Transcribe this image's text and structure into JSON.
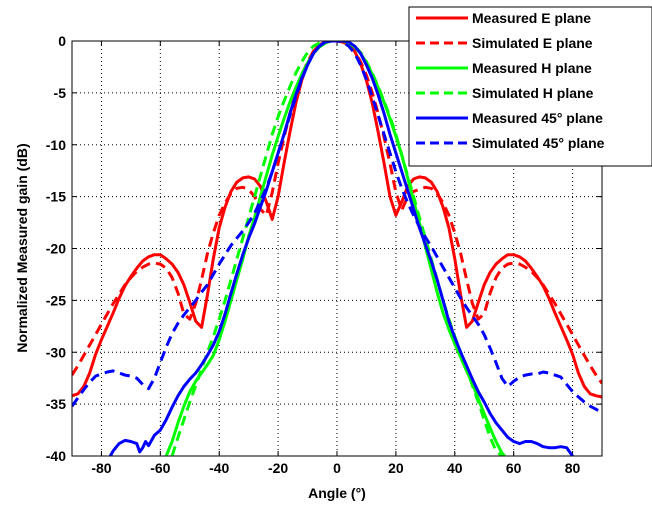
{
  "chart_data": {
    "type": "line",
    "title": "",
    "xlabel": "Angle (°)",
    "ylabel": "Normalized Measured gain (dB)",
    "xlim": [
      -90,
      90
    ],
    "ylim": [
      -40,
      0
    ],
    "xticks": [
      -80,
      -60,
      -40,
      -20,
      0,
      20,
      40,
      60,
      80
    ],
    "yticks": [
      0,
      -5,
      -10,
      -15,
      -20,
      -25,
      -30,
      -35,
      -40
    ],
    "grid": true,
    "legend_position": "top-right",
    "series": [
      {
        "name": "Measured E plane",
        "color": "#ff0000",
        "style": "solid",
        "x": [
          -90,
          -88,
          -86,
          -84,
          -82,
          -80,
          -78,
          -76,
          -74,
          -72,
          -70,
          -68,
          -66,
          -64,
          -62,
          -60,
          -58,
          -56,
          -54,
          -52,
          -50,
          -48,
          -46,
          -44,
          -42,
          -40,
          -38,
          -36,
          -34,
          -32,
          -30,
          -28,
          -26,
          -24,
          -22,
          -20,
          -18,
          -16,
          -14,
          -12,
          -10,
          -8,
          -6,
          -4,
          -2,
          0,
          2,
          4,
          6,
          8,
          10,
          12,
          14,
          16,
          18,
          20,
          22,
          24,
          26,
          28,
          30,
          32,
          34,
          36,
          38,
          40,
          42,
          44,
          46,
          48,
          50,
          52,
          54,
          56,
          58,
          60,
          62,
          64,
          66,
          68,
          70,
          72,
          74,
          76,
          78,
          80,
          82,
          84,
          86,
          88,
          90
        ],
        "y": [
          -34.2,
          -34,
          -33.3,
          -32,
          -30.2,
          -28.8,
          -27.5,
          -26.2,
          -24.8,
          -23.6,
          -22.7,
          -21.9,
          -21.2,
          -20.8,
          -20.6,
          -20.6,
          -21,
          -21.5,
          -22.3,
          -23.5,
          -25.2,
          -27,
          -27.6,
          -24.5,
          -21,
          -18,
          -16,
          -14.5,
          -13.6,
          -13.2,
          -13.1,
          -13.3,
          -14,
          -15.5,
          -17.2,
          -15,
          -11.8,
          -8.8,
          -6,
          -3.8,
          -2.2,
          -1,
          -0.4,
          -0.1,
          0,
          0,
          -0.1,
          -0.4,
          -1,
          -2.2,
          -3.8,
          -6,
          -8.8,
          -11.8,
          -15,
          -16.8,
          -15.5,
          -14,
          -13.3,
          -13.1,
          -13.2,
          -13.6,
          -14.5,
          -16,
          -18,
          -21,
          -24.5,
          -27.6,
          -27,
          -25.2,
          -23.5,
          -22.3,
          -21.5,
          -21,
          -20.6,
          -20.6,
          -20.8,
          -21.2,
          -21.9,
          -22.7,
          -23.6,
          -24.8,
          -26.2,
          -27.5,
          -28.8,
          -30.2,
          -32,
          -33.3,
          -34,
          -34.2,
          -34.3
        ]
      },
      {
        "name": "Simulated E plane",
        "color": "#ff0000",
        "style": "dashed",
        "x": [
          -90,
          -88,
          -86,
          -84,
          -82,
          -80,
          -78,
          -76,
          -74,
          -72,
          -70,
          -68,
          -66,
          -64,
          -62,
          -60,
          -58,
          -56,
          -54,
          -52,
          -50,
          -48,
          -46,
          -44,
          -42,
          -40,
          -38,
          -36,
          -34,
          -32,
          -30,
          -28,
          -26,
          -24,
          -22,
          -20,
          -18,
          -16,
          -14,
          -12,
          -10,
          -8,
          -6,
          -4,
          -2,
          0,
          2,
          4,
          6,
          8,
          10,
          12,
          14,
          16,
          18,
          20,
          22,
          24,
          26,
          28,
          30,
          32,
          34,
          36,
          38,
          40,
          42,
          44,
          46,
          48,
          50,
          52,
          54,
          56,
          58,
          60,
          62,
          64,
          66,
          68,
          70,
          72,
          74,
          76,
          78,
          80,
          82,
          84,
          86,
          88,
          90
        ],
        "y": [
          -32.2,
          -31.3,
          -30.3,
          -29.3,
          -28.3,
          -27.3,
          -26.3,
          -25.3,
          -24.4,
          -23.5,
          -22.8,
          -22.2,
          -21.8,
          -21.5,
          -21.4,
          -21.5,
          -21.9,
          -22.8,
          -24.3,
          -26.3,
          -26.8,
          -25.3,
          -23,
          -20.5,
          -18.5,
          -16.8,
          -15.6,
          -14.7,
          -14.2,
          -14.1,
          -14.3,
          -15,
          -16.2,
          -16.8,
          -14.6,
          -11.8,
          -9.3,
          -7,
          -5,
          -3.3,
          -2,
          -1,
          -0.4,
          -0.1,
          0,
          0,
          -0.1,
          -0.4,
          -1,
          -2,
          -3.3,
          -5,
          -7,
          -9.3,
          -11.8,
          -14.6,
          -16.3,
          -15,
          -14.5,
          -14.3,
          -14.1,
          -14.2,
          -14.7,
          -15.6,
          -16.8,
          -18.5,
          -20.5,
          -23,
          -25.3,
          -26.8,
          -26.3,
          -24.3,
          -22.8,
          -21.9,
          -21.5,
          -21.4,
          -21.5,
          -21.8,
          -22.2,
          -22.8,
          -23.5,
          -24.4,
          -25.3,
          -26.3,
          -27.3,
          -28.3,
          -29.3,
          -30.3,
          -31.3,
          -32.2,
          -33
        ]
      },
      {
        "name": "Measured H plane",
        "color": "#00ff00",
        "style": "solid",
        "x": [
          -58,
          -56,
          -54,
          -52,
          -50,
          -48,
          -46,
          -44,
          -42,
          -40,
          -38,
          -36,
          -34,
          -32,
          -30,
          -28,
          -26,
          -24,
          -22,
          -20,
          -18,
          -16,
          -14,
          -12,
          -10,
          -8,
          -6,
          -4,
          -2,
          0,
          2,
          4,
          6,
          8,
          10,
          12,
          14,
          16,
          18,
          20,
          22,
          24,
          26,
          28,
          30,
          32,
          34,
          36,
          38,
          40,
          42,
          44,
          46,
          48,
          50,
          52,
          54,
          56,
          57
        ],
        "y": [
          -40,
          -38.6,
          -36.8,
          -35.2,
          -33.8,
          -32.8,
          -32,
          -31.2,
          -30.3,
          -28.8,
          -27,
          -25,
          -23,
          -21,
          -18.8,
          -17,
          -15,
          -13,
          -11,
          -9.2,
          -7.5,
          -5.9,
          -4.5,
          -3.2,
          -2.1,
          -1.2,
          -0.6,
          -0.2,
          0,
          0,
          0,
          -0.2,
          -0.6,
          -1.2,
          -2.1,
          -3.2,
          -4.5,
          -5.9,
          -7.5,
          -9.2,
          -11,
          -13.2,
          -15.4,
          -17.5,
          -19.8,
          -22,
          -24.2,
          -26.2,
          -27.8,
          -29.2,
          -30.5,
          -31.8,
          -33,
          -34.5,
          -35.9,
          -37.3,
          -38.6,
          -39.7,
          -40
        ]
      },
      {
        "name": "Simulated H plane",
        "color": "#00ff00",
        "style": "dashed",
        "x": [
          -56,
          -54,
          -52,
          -50,
          -48,
          -46,
          -44,
          -42,
          -40,
          -38,
          -36,
          -34,
          -32,
          -30,
          -28,
          -26,
          -24,
          -22,
          -20,
          -18,
          -16,
          -14,
          -12,
          -10,
          -8,
          -6,
          -4,
          -2,
          0,
          2,
          4,
          6,
          8,
          10,
          12,
          14,
          16,
          18,
          20,
          22,
          24,
          26,
          28,
          30,
          32,
          34,
          36,
          38,
          40,
          42,
          44,
          46,
          48,
          50,
          52,
          54,
          56
        ],
        "y": [
          -40,
          -38.2,
          -36.5,
          -34.8,
          -33.2,
          -31.6,
          -30,
          -28.5,
          -26.8,
          -25,
          -23,
          -21,
          -19,
          -17,
          -15,
          -13,
          -11,
          -9,
          -7.3,
          -5.8,
          -4.4,
          -3.1,
          -2,
          -1.1,
          -0.5,
          -0.2,
          0,
          0,
          0,
          0,
          -0.2,
          -0.5,
          -1.1,
          -2,
          -3.1,
          -4.4,
          -5.8,
          -7.3,
          -9,
          -11,
          -13,
          -15,
          -17,
          -19,
          -21,
          -23,
          -25,
          -26.8,
          -28.5,
          -30,
          -31.6,
          -33.2,
          -34.8,
          -36.5,
          -38.2,
          -39.5,
          -40
        ]
      },
      {
        "name": "Measured 45° plane",
        "color": "#0000ff",
        "style": "solid",
        "x": [
          -77,
          -76,
          -74,
          -72,
          -70,
          -68,
          -67,
          -66,
          -65,
          -64,
          -62,
          -60,
          -58,
          -56,
          -54,
          -52,
          -50,
          -48,
          -46,
          -44,
          -42,
          -40,
          -38,
          -36,
          -34,
          -32,
          -30,
          -28,
          -26,
          -24,
          -22,
          -20,
          -18,
          -16,
          -14,
          -12,
          -10,
          -8,
          -6,
          -4,
          -2,
          0,
          2,
          4,
          6,
          8,
          10,
          12,
          14,
          16,
          18,
          20,
          22,
          24,
          26,
          28,
          30,
          32,
          34,
          36,
          38,
          40,
          42,
          44,
          46,
          48,
          50,
          52,
          54,
          56,
          58,
          60,
          62,
          64,
          66,
          68,
          70,
          72,
          74,
          76,
          78,
          79,
          80
        ],
        "y": [
          -40,
          -39.5,
          -38.8,
          -38.5,
          -38.6,
          -38.8,
          -39.6,
          -39.2,
          -38.6,
          -39,
          -38,
          -37.5,
          -36.5,
          -35.3,
          -34.2,
          -33.3,
          -32.6,
          -32,
          -31.2,
          -30.3,
          -29.3,
          -28,
          -26.3,
          -24.3,
          -22.4,
          -20.6,
          -19,
          -17.6,
          -16,
          -14.4,
          -12.6,
          -10.8,
          -9,
          -7,
          -5.2,
          -3.6,
          -2.3,
          -1.2,
          -0.5,
          -0.1,
          0,
          0,
          0,
          -0.1,
          -0.5,
          -1.2,
          -2.3,
          -3.6,
          -5.2,
          -7,
          -9,
          -10.8,
          -12.6,
          -14.4,
          -16.2,
          -18,
          -19.6,
          -21.2,
          -23,
          -25,
          -27,
          -28.6,
          -30,
          -31.3,
          -32.6,
          -33.8,
          -34.8,
          -35.9,
          -36.8,
          -37.5,
          -38.2,
          -38.6,
          -38.8,
          -38.6,
          -38.6,
          -38.8,
          -39.1,
          -39.2,
          -39.2,
          -39.1,
          -39.2,
          -39.6,
          -40
        ]
      },
      {
        "name": "Simulated 45° plane",
        "color": "#0000ff",
        "style": "dashed",
        "x": [
          -90,
          -88,
          -86,
          -84,
          -82,
          -80,
          -78,
          -76,
          -74,
          -72,
          -70,
          -68,
          -66,
          -64,
          -62,
          -60,
          -58,
          -56,
          -54,
          -52,
          -50,
          -48,
          -46,
          -44,
          -42,
          -40,
          -38,
          -36,
          -34,
          -32,
          -30,
          -28,
          -26,
          -24,
          -22,
          -20,
          -18,
          -16,
          -14,
          -12,
          -10,
          -8,
          -6,
          -4,
          -2,
          0,
          2,
          4,
          6,
          8,
          10,
          12,
          14,
          16,
          18,
          20,
          22,
          24,
          26,
          28,
          30,
          32,
          34,
          36,
          38,
          40,
          42,
          44,
          46,
          48,
          50,
          52,
          54,
          56,
          58,
          60,
          62,
          64,
          66,
          68,
          70,
          72,
          74,
          76,
          78,
          80,
          82,
          84,
          86,
          88,
          90
        ],
        "y": [
          -35.2,
          -34.4,
          -33.6,
          -32.9,
          -32.3,
          -32.1,
          -31.9,
          -31.8,
          -32,
          -32.2,
          -32.3,
          -32.5,
          -33.1,
          -33.5,
          -32.5,
          -31,
          -29.5,
          -28.2,
          -27.2,
          -26.4,
          -25.7,
          -25,
          -24.2,
          -23.5,
          -22.5,
          -21.5,
          -20.6,
          -19.7,
          -19,
          -18.3,
          -17.5,
          -16.6,
          -15.4,
          -14.2,
          -12.6,
          -10.8,
          -9,
          -7.2,
          -5.4,
          -3.7,
          -2.3,
          -1.2,
          -0.5,
          -0.1,
          0,
          0,
          -0.1,
          -0.5,
          -1.2,
          -2.3,
          -3.7,
          -5.4,
          -7.2,
          -9,
          -10.8,
          -12.6,
          -14.2,
          -15.6,
          -16.8,
          -17.9,
          -18.9,
          -19.8,
          -20.8,
          -21.8,
          -22.8,
          -23.8,
          -24.8,
          -25.7,
          -26.5,
          -27.3,
          -28.3,
          -29.6,
          -31,
          -32.5,
          -33.3,
          -32.8,
          -32.4,
          -32.2,
          -32.1,
          -32.1,
          -31.9,
          -32,
          -32.2,
          -32.4,
          -33.1,
          -33.8,
          -34.3,
          -34.8,
          -35.2,
          -35.5,
          -35.8
        ]
      }
    ]
  }
}
